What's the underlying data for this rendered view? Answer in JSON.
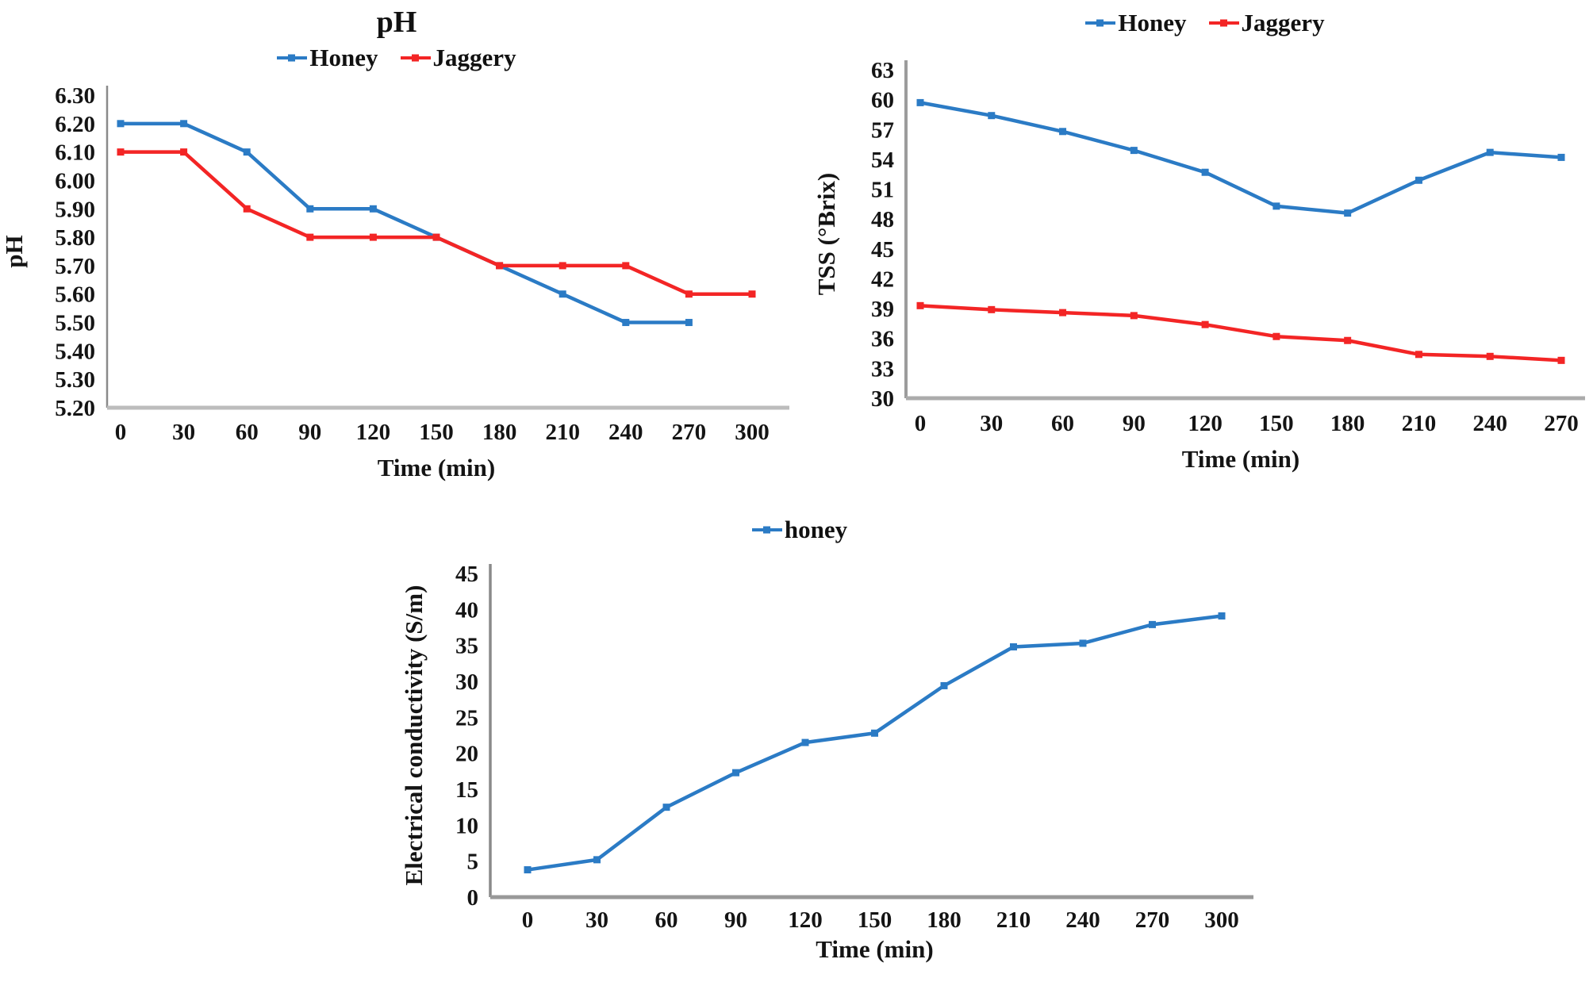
{
  "figure": {
    "background": "#ffffff",
    "text_color": "#111111"
  },
  "chart_data": [
    {
      "id": "ph-chart",
      "type": "line",
      "title": "pH",
      "xlabel": "Time (min)",
      "ylabel": "pH",
      "legend_position": "top",
      "grid": false,
      "x_ticks": [
        0,
        30,
        60,
        90,
        120,
        150,
        180,
        210,
        240,
        270,
        300
      ],
      "ylim": [
        5.2,
        6.3
      ],
      "y_step": 0.1,
      "y_tick_decimals": 2,
      "series": [
        {
          "name": "Honey",
          "color": "#2B7BC5",
          "x": [
            0,
            30,
            60,
            90,
            120,
            150,
            180,
            210,
            240,
            270
          ],
          "values": [
            6.2,
            6.2,
            6.1,
            5.9,
            5.9,
            5.8,
            5.7,
            5.6,
            5.5,
            5.5
          ]
        },
        {
          "name": "Jaggery",
          "color": "#F32525",
          "x": [
            0,
            30,
            60,
            90,
            120,
            150,
            180,
            210,
            240,
            270,
            300
          ],
          "values": [
            6.1,
            6.1,
            5.9,
            5.8,
            5.8,
            5.8,
            5.7,
            5.7,
            5.7,
            5.6,
            5.6
          ]
        }
      ]
    },
    {
      "id": "tss-chart",
      "type": "line",
      "title": "",
      "xlabel": "Time (min)",
      "ylabel": "TSS (°Brix)",
      "legend_position": "top",
      "grid": false,
      "x_ticks": [
        0,
        30,
        60,
        90,
        120,
        150,
        180,
        210,
        240,
        270
      ],
      "ylim": [
        30,
        63
      ],
      "y_step": 3,
      "y_tick_decimals": 0,
      "series": [
        {
          "name": "Honey",
          "color": "#2B7BC5",
          "x": [
            0,
            30,
            60,
            90,
            120,
            150,
            180,
            210,
            240,
            270
          ],
          "values": [
            59.7,
            58.4,
            56.8,
            54.9,
            52.7,
            49.3,
            48.6,
            51.9,
            54.7,
            54.2
          ]
        },
        {
          "name": "Jaggery",
          "color": "#F32525",
          "x": [
            0,
            30,
            60,
            90,
            120,
            150,
            180,
            210,
            240,
            270
          ],
          "values": [
            39.3,
            38.9,
            38.6,
            38.3,
            37.4,
            36.2,
            35.8,
            34.4,
            34.2,
            33.8
          ]
        }
      ]
    },
    {
      "id": "ec-chart",
      "type": "line",
      "title": "",
      "xlabel": "Time (min)",
      "ylabel": "Electrical conductivity (S/m)",
      "legend_position": "top",
      "grid": false,
      "x_ticks": [
        0,
        30,
        60,
        90,
        120,
        150,
        180,
        210,
        240,
        270,
        300
      ],
      "ylim": [
        0,
        45
      ],
      "y_step": 5,
      "y_tick_decimals": 0,
      "series": [
        {
          "name": "honey",
          "color": "#2B7BC5",
          "x": [
            0,
            30,
            60,
            90,
            120,
            150,
            180,
            210,
            240,
            270,
            300
          ],
          "values": [
            3.8,
            5.2,
            12.5,
            17.3,
            21.5,
            22.8,
            29.4,
            34.8,
            35.3,
            37.9,
            39.1
          ]
        }
      ]
    }
  ]
}
